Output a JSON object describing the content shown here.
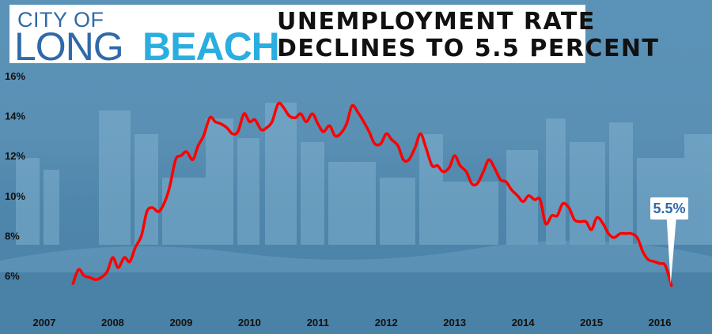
{
  "logo": {
    "line1": "CITY OF",
    "long": "LONG",
    "beach": "BEACH"
  },
  "headline": {
    "line1": "UNEMPLOYMENT RATE",
    "line2": "DECLINES TO 5.5 PERCENT"
  },
  "colors": {
    "line": "#ff0000",
    "logo_blue": "#2f6aa8",
    "logo_cyan": "#2aaee0"
  },
  "chart_data": {
    "type": "line",
    "title": "",
    "xlabel": "",
    "ylabel": "",
    "xlim": [
      2007.0,
      2016.3
    ],
    "ylim": [
      4.3,
      16.0
    ],
    "x_ticks": [
      {
        "value": 2007,
        "label": "2007"
      },
      {
        "value": 2008,
        "label": "2008"
      },
      {
        "value": 2009,
        "label": "2009"
      },
      {
        "value": 2010,
        "label": "2010"
      },
      {
        "value": 2011,
        "label": "2011"
      },
      {
        "value": 2012,
        "label": "2012"
      },
      {
        "value": 2013,
        "label": "2013"
      },
      {
        "value": 2014,
        "label": "2014"
      },
      {
        "value": 2015,
        "label": "2015"
      },
      {
        "value": 2016,
        "label": "2016"
      }
    ],
    "y_ticks": [
      {
        "value": 6,
        "label": "6%"
      },
      {
        "value": 8,
        "label": "8%"
      },
      {
        "value": 10,
        "label": "10%"
      },
      {
        "value": 12,
        "label": "12%"
      },
      {
        "value": 14,
        "label": "14%"
      },
      {
        "value": 16,
        "label": "16%"
      }
    ],
    "grid": false,
    "series": [
      {
        "name": "",
        "color": "#ff0000",
        "x": [
          2007.42,
          2007.5,
          2007.58,
          2007.67,
          2007.75,
          2007.83,
          2007.92,
          2008.0,
          2008.08,
          2008.17,
          2008.25,
          2008.33,
          2008.42,
          2008.5,
          2008.58,
          2008.67,
          2008.75,
          2008.83,
          2008.92,
          2009.0,
          2009.08,
          2009.17,
          2009.25,
          2009.33,
          2009.42,
          2009.5,
          2009.58,
          2009.67,
          2009.75,
          2009.83,
          2009.92,
          2010.0,
          2010.08,
          2010.17,
          2010.25,
          2010.33,
          2010.42,
          2010.5,
          2010.58,
          2010.67,
          2010.75,
          2010.83,
          2010.92,
          2011.0,
          2011.08,
          2011.17,
          2011.25,
          2011.33,
          2011.42,
          2011.5,
          2011.58,
          2011.67,
          2011.75,
          2011.83,
          2011.92,
          2012.0,
          2012.08,
          2012.17,
          2012.25,
          2012.33,
          2012.42,
          2012.5,
          2012.58,
          2012.67,
          2012.75,
          2012.83,
          2012.92,
          2013.0,
          2013.08,
          2013.17,
          2013.25,
          2013.33,
          2013.42,
          2013.5,
          2013.58,
          2013.67,
          2013.75,
          2013.83,
          2013.92,
          2014.0,
          2014.08,
          2014.17,
          2014.25,
          2014.33,
          2014.42,
          2014.5,
          2014.58,
          2014.67,
          2014.75,
          2014.83,
          2014.92,
          2015.0,
          2015.08,
          2015.17,
          2015.25,
          2015.33,
          2015.42,
          2015.5,
          2015.58,
          2015.67,
          2015.75,
          2015.83,
          2015.92,
          2016.0,
          2016.08,
          2016.17
        ],
        "values": [
          5.6,
          6.3,
          6.0,
          5.9,
          5.8,
          5.9,
          6.2,
          6.9,
          6.4,
          6.9,
          6.7,
          7.4,
          8.0,
          9.2,
          9.4,
          9.2,
          9.6,
          10.4,
          11.8,
          12.0,
          12.2,
          11.8,
          12.5,
          13.0,
          13.9,
          13.7,
          13.6,
          13.4,
          13.1,
          13.2,
          14.1,
          13.7,
          13.8,
          13.3,
          13.4,
          13.7,
          14.6,
          14.4,
          14.0,
          13.9,
          14.1,
          13.7,
          14.1,
          13.6,
          13.2,
          13.5,
          13.0,
          13.1,
          13.6,
          14.5,
          14.2,
          13.7,
          13.2,
          12.6,
          12.6,
          13.1,
          12.8,
          12.5,
          11.8,
          11.8,
          12.4,
          13.1,
          12.4,
          11.5,
          11.5,
          11.2,
          11.4,
          12.0,
          11.5,
          11.2,
          10.6,
          10.6,
          11.2,
          11.8,
          11.4,
          10.8,
          10.7,
          10.3,
          10.0,
          9.7,
          10.0,
          9.8,
          9.8,
          8.6,
          9.0,
          9.0,
          9.6,
          9.4,
          8.8,
          8.7,
          8.7,
          8.3,
          8.9,
          8.6,
          8.1,
          7.9,
          8.1,
          8.1,
          8.1,
          7.9,
          7.2,
          6.8,
          6.7,
          6.6,
          6.5,
          5.5
        ]
      }
    ],
    "annotations": [
      {
        "text": "5.5%",
        "x": 2016.17,
        "y": 5.5
      }
    ]
  }
}
